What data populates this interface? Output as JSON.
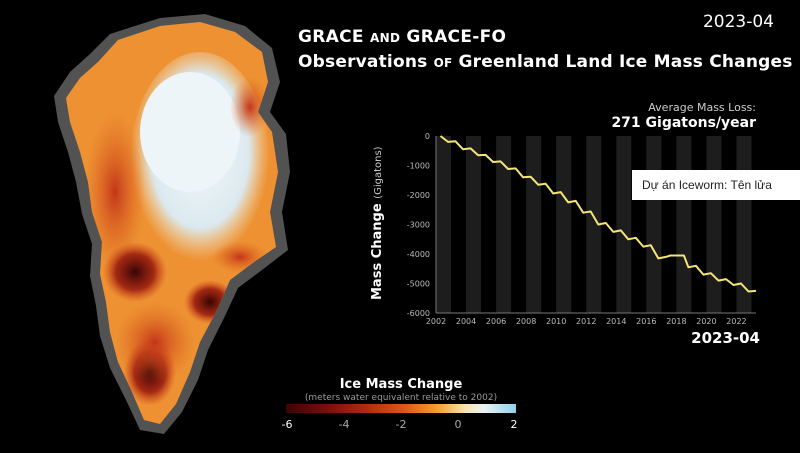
{
  "date_top": "2023-04",
  "title": {
    "line1": [
      "GRACE ",
      "AND",
      " GRACE-FO"
    ],
    "line2": [
      "Observations ",
      "OF",
      " Greenland Land Ice Mass Changes"
    ]
  },
  "average": {
    "label": "Average Mass Loss:",
    "value": "271 Gigatons/year"
  },
  "tooltip": "Dự án Iceworm: Tên lửa",
  "colorbar": {
    "title": "Ice Mass Change",
    "subtitle": "(meters water equivalent relative to 2002)",
    "ticks": [
      "-6",
      "-4",
      "-2",
      "0",
      "2"
    ],
    "colors": {
      "deep_loss": "#3a0505",
      "loss": "#e0581a",
      "neutral": "#eaf3f6",
      "gain": "#8fd2ea"
    }
  },
  "chart_data": {
    "type": "line",
    "title": "",
    "xlabel": "",
    "ylabel": "Mass Change",
    "ylabel_unit": "(Gigatons)",
    "xlim": [
      2002,
      2023.3
    ],
    "ylim": [
      -6000,
      0
    ],
    "grid": false,
    "x_ticks": [
      "2002",
      "2004",
      "2006",
      "2008",
      "2010",
      "2012",
      "2014",
      "2016",
      "2018",
      "2020",
      "2022"
    ],
    "y_ticks": [
      "0",
      "-1000",
      "-2000",
      "-3000",
      "-4000",
      "-5000",
      "-6000"
    ],
    "series": [
      {
        "color": "#f3e57a",
        "x": [
          2002.3,
          2002.8,
          2003.3,
          2003.8,
          2004.3,
          2004.8,
          2005.3,
          2005.8,
          2006.3,
          2006.8,
          2007.3,
          2007.8,
          2008.3,
          2008.8,
          2009.3,
          2009.8,
          2010.3,
          2010.8,
          2011.3,
          2011.8,
          2012.3,
          2012.8,
          2013.3,
          2013.8,
          2014.3,
          2014.8,
          2015.3,
          2015.8,
          2016.3,
          2016.8,
          2017.3,
          2017.6,
          2018.5,
          2018.8,
          2019.3,
          2019.8,
          2020.3,
          2020.8,
          2021.3,
          2021.8,
          2022.3,
          2022.8,
          2023.3
        ],
        "values": [
          0,
          -200,
          -180,
          -450,
          -420,
          -650,
          -640,
          -880,
          -860,
          -1120,
          -1100,
          -1400,
          -1380,
          -1650,
          -1620,
          -1950,
          -1900,
          -2250,
          -2200,
          -2600,
          -2560,
          -3000,
          -2950,
          -3250,
          -3200,
          -3500,
          -3450,
          -3750,
          -3700,
          -4150,
          -4100,
          -4050,
          -4050,
          -4450,
          -4400,
          -4700,
          -4650,
          -4900,
          -4850,
          -5050,
          -5000,
          -5270,
          -5250
        ]
      }
    ],
    "current_label": "2023-04"
  }
}
